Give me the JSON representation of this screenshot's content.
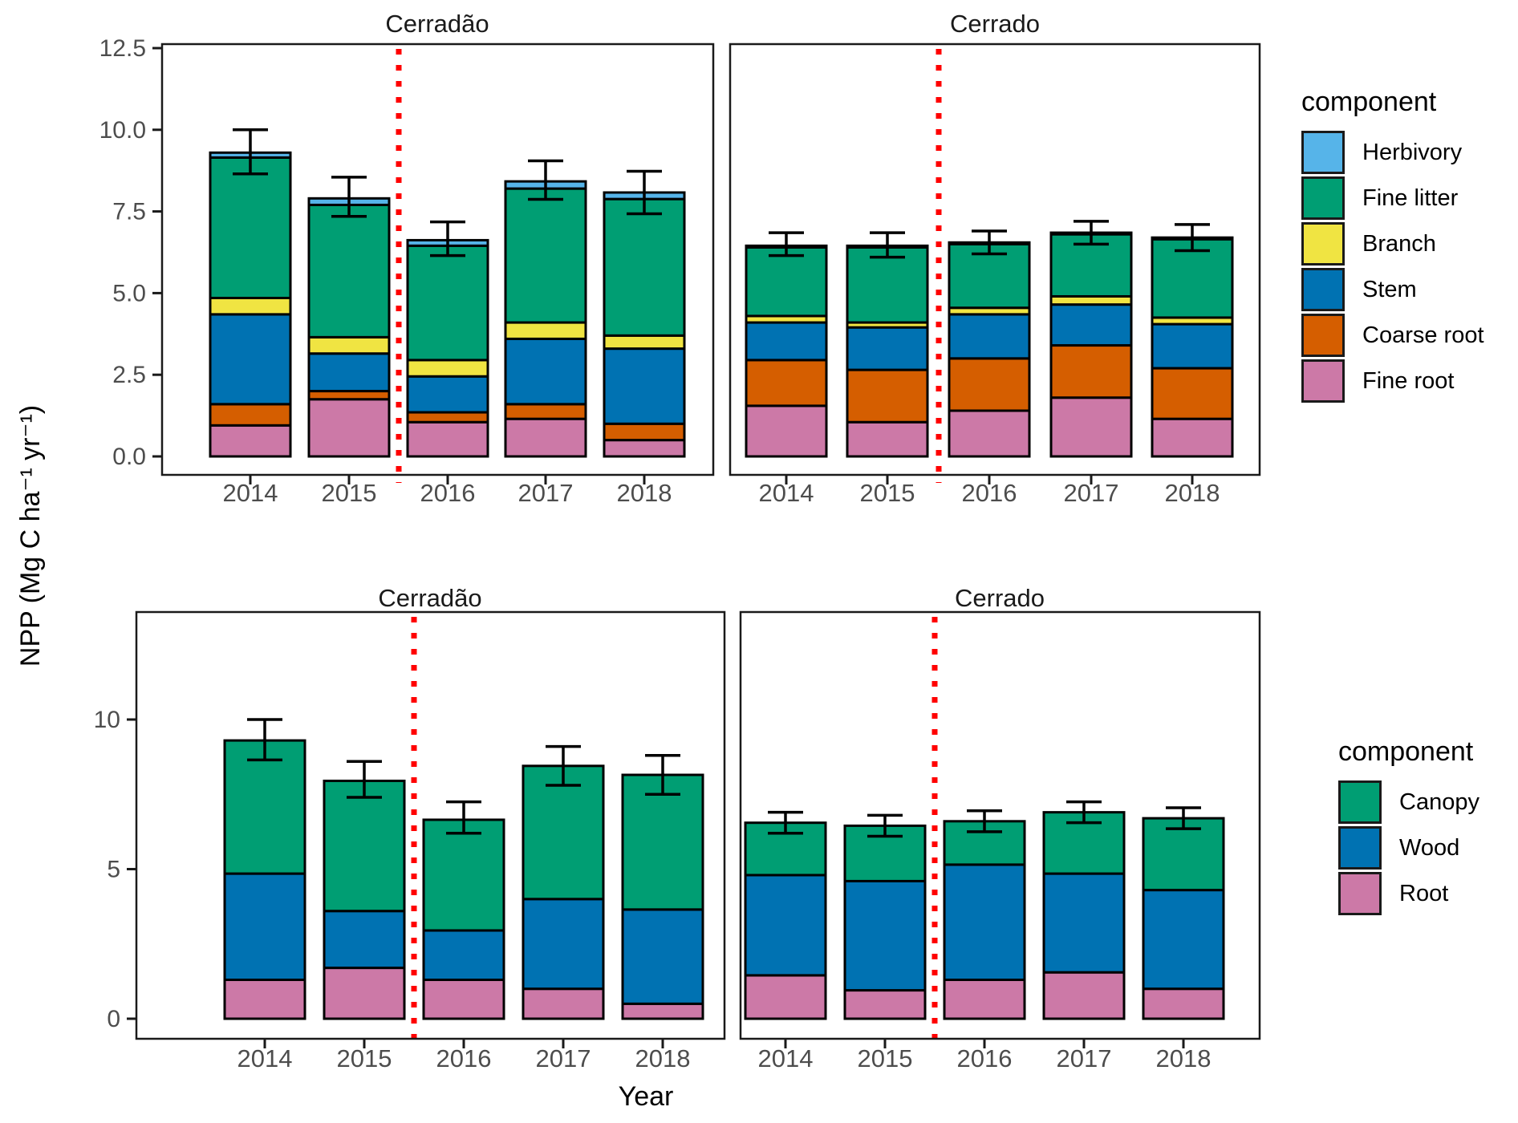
{
  "figure": {
    "ylabel": "NPP (Mg C ha⁻¹ yr⁻¹)",
    "xlabel": "Year"
  },
  "facets": {
    "top_left": "Cerradão",
    "top_right": "Cerrado",
    "bottom_left": "Cerradão",
    "bottom_right": "Cerrado"
  },
  "colors": {
    "herbivory": "#56B4E9",
    "fine_litter": "#009E73",
    "branch": "#F0E442",
    "stem": "#0072B2",
    "coarse_root": "#D55E00",
    "fine_root": "#CC79A7",
    "canopy": "#009E73",
    "wood": "#0072B2",
    "root": "#CC79A7",
    "treatment_line": "#FF0000",
    "axis_text": "#4D4D4D",
    "bar_outline": "#000000"
  },
  "legend_top": {
    "title": "component",
    "items": [
      {
        "label": "Herbivory",
        "color": "#56B4E9"
      },
      {
        "label": "Fine litter",
        "color": "#009E73"
      },
      {
        "label": "Branch",
        "color": "#F0E442"
      },
      {
        "label": "Stem",
        "color": "#0072B2"
      },
      {
        "label": "Coarse root",
        "color": "#D55E00"
      },
      {
        "label": "Fine root",
        "color": "#CC79A7"
      }
    ]
  },
  "legend_bottom": {
    "title": "component",
    "items": [
      {
        "label": "Canopy",
        "color": "#009E73"
      },
      {
        "label": "Wood",
        "color": "#0072B2"
      },
      {
        "label": "Root",
        "color": "#CC79A7"
      }
    ]
  },
  "chart_data": [
    {
      "type": "bar",
      "stacked": true,
      "panel": "top-left",
      "facet": "Cerradão",
      "categories": [
        "2014",
        "2015",
        "2016",
        "2017",
        "2018"
      ],
      "series": [
        {
          "name": "Fine root",
          "color": "#CC79A7",
          "values": [
            0.95,
            1.75,
            1.05,
            1.15,
            0.5
          ]
        },
        {
          "name": "Coarse root",
          "color": "#D55E00",
          "values": [
            0.65,
            0.25,
            0.3,
            0.45,
            0.5
          ]
        },
        {
          "name": "Stem",
          "color": "#0072B2",
          "values": [
            2.75,
            1.15,
            1.1,
            2.0,
            2.3
          ]
        },
        {
          "name": "Branch",
          "color": "#F0E442",
          "values": [
            0.5,
            0.5,
            0.5,
            0.5,
            0.4
          ]
        },
        {
          "name": "Fine litter",
          "color": "#009E73",
          "values": [
            4.3,
            4.05,
            3.5,
            4.1,
            4.18
          ]
        },
        {
          "name": "Herbivory",
          "color": "#56B4E9",
          "values": [
            0.15,
            0.2,
            0.17,
            0.22,
            0.2
          ]
        }
      ],
      "totals": [
        9.3,
        7.9,
        6.62,
        8.42,
        8.08
      ],
      "error_low": [
        8.65,
        7.35,
        6.15,
        7.87,
        7.43
      ],
      "error_high": [
        10.0,
        8.55,
        7.18,
        9.05,
        8.73
      ],
      "ylim": [
        0,
        12.5
      ],
      "yticks": [
        {
          "v": 0,
          "label": "0.0"
        },
        {
          "v": 2.5,
          "label": "2.5"
        },
        {
          "v": 5,
          "label": "5.0"
        },
        {
          "v": 7.5,
          "label": "7.5"
        },
        {
          "v": 10,
          "label": "10.0"
        },
        {
          "v": 12.5,
          "label": "12.5"
        }
      ],
      "vline_between": [
        "2015",
        "2016"
      ],
      "grid": false,
      "legend_position": "right"
    },
    {
      "type": "bar",
      "stacked": true,
      "panel": "top-right",
      "facet": "Cerrado",
      "categories": [
        "2014",
        "2015",
        "2016",
        "2017",
        "2018"
      ],
      "series": [
        {
          "name": "Fine root",
          "color": "#CC79A7",
          "values": [
            1.55,
            1.05,
            1.4,
            1.8,
            1.15
          ]
        },
        {
          "name": "Coarse root",
          "color": "#D55E00",
          "values": [
            1.4,
            1.6,
            1.6,
            1.6,
            1.55
          ]
        },
        {
          "name": "Stem",
          "color": "#0072B2",
          "values": [
            1.15,
            1.3,
            1.35,
            1.25,
            1.35
          ]
        },
        {
          "name": "Branch",
          "color": "#F0E442",
          "values": [
            0.2,
            0.15,
            0.2,
            0.25,
            0.2
          ]
        },
        {
          "name": "Fine litter",
          "color": "#009E73",
          "values": [
            2.1,
            2.3,
            1.95,
            1.9,
            2.4
          ]
        },
        {
          "name": "Herbivory",
          "color": "#56B4E9",
          "values": [
            0.05,
            0.05,
            0.05,
            0.05,
            0.05
          ]
        }
      ],
      "totals": [
        6.45,
        6.45,
        6.55,
        6.85,
        6.7
      ],
      "error_low": [
        6.15,
        6.1,
        6.2,
        6.5,
        6.3
      ],
      "error_high": [
        6.85,
        6.85,
        6.9,
        7.2,
        7.1
      ],
      "ylim": [
        0,
        12.5
      ],
      "yticks": [],
      "vline_between": [
        "2015",
        "2016"
      ],
      "grid": false
    },
    {
      "type": "bar",
      "stacked": true,
      "panel": "bottom-left",
      "facet": "Cerradão",
      "categories": [
        "2014",
        "2015",
        "2016",
        "2017",
        "2018"
      ],
      "series": [
        {
          "name": "Root",
          "color": "#CC79A7",
          "values": [
            1.3,
            1.7,
            1.3,
            1.0,
            0.5
          ]
        },
        {
          "name": "Wood",
          "color": "#0072B2",
          "values": [
            3.55,
            1.9,
            1.65,
            3.0,
            3.15
          ]
        },
        {
          "name": "Canopy",
          "color": "#009E73",
          "values": [
            4.45,
            4.35,
            3.7,
            4.45,
            4.5
          ]
        }
      ],
      "totals": [
        9.3,
        7.95,
        6.65,
        8.45,
        8.15
      ],
      "error_low": [
        8.65,
        7.4,
        6.2,
        7.8,
        7.5
      ],
      "error_high": [
        10.0,
        8.6,
        7.25,
        9.1,
        8.8
      ],
      "ylim": [
        0,
        13.5
      ],
      "yticks": [
        {
          "v": 0,
          "label": "0"
        },
        {
          "v": 5,
          "label": "5"
        },
        {
          "v": 10,
          "label": "10"
        }
      ],
      "vline_between": [
        "2015",
        "2016"
      ],
      "grid": false
    },
    {
      "type": "bar",
      "stacked": true,
      "panel": "bottom-right",
      "facet": "Cerrado",
      "categories": [
        "2014",
        "2015",
        "2016",
        "2017",
        "2018"
      ],
      "series": [
        {
          "name": "Root",
          "color": "#CC79A7",
          "values": [
            1.45,
            0.95,
            1.3,
            1.55,
            1.0
          ]
        },
        {
          "name": "Wood",
          "color": "#0072B2",
          "values": [
            3.35,
            3.65,
            3.85,
            3.3,
            3.3
          ]
        },
        {
          "name": "Canopy",
          "color": "#009E73",
          "values": [
            1.75,
            1.85,
            1.45,
            2.05,
            2.4
          ]
        }
      ],
      "totals": [
        6.55,
        6.45,
        6.6,
        6.9,
        6.7
      ],
      "error_low": [
        6.2,
        6.1,
        6.25,
        6.55,
        6.35
      ],
      "error_high": [
        6.9,
        6.8,
        6.95,
        7.25,
        7.05
      ],
      "ylim": [
        0,
        13.5
      ],
      "yticks": [],
      "vline_between": [
        "2015",
        "2016"
      ],
      "grid": false
    }
  ]
}
